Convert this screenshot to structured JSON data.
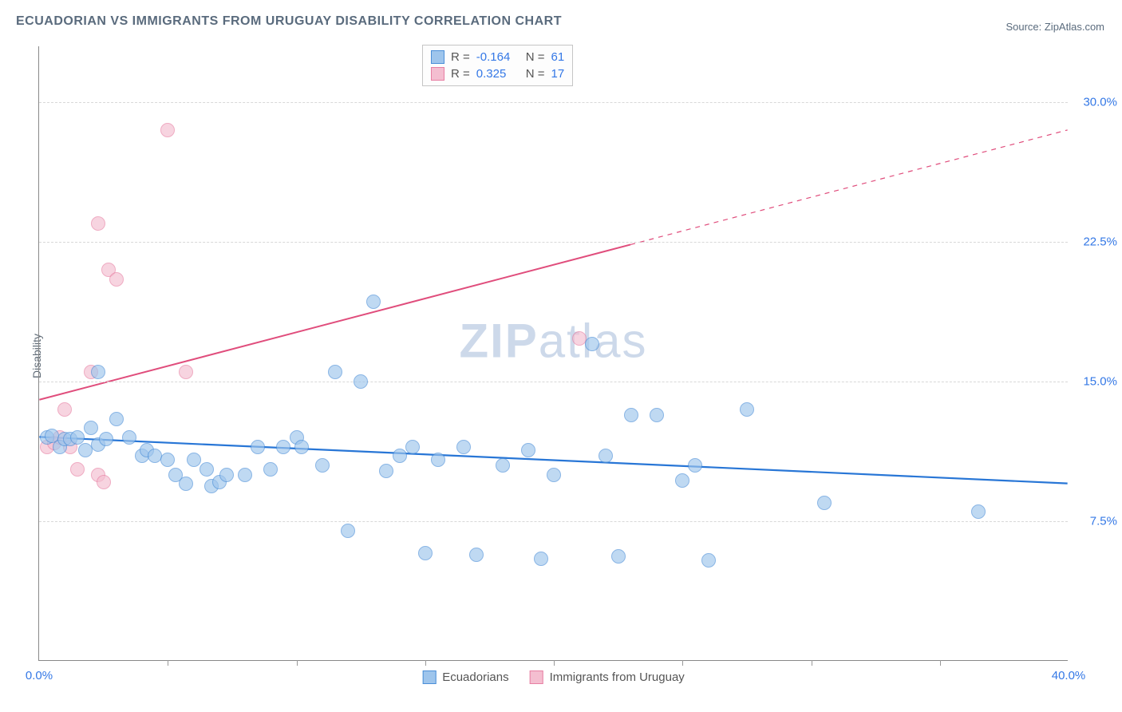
{
  "title": "ECUADORIAN VS IMMIGRANTS FROM URUGUAY DISABILITY CORRELATION CHART",
  "source": "Source: ZipAtlas.com",
  "yaxis_label": "Disability",
  "watermark": {
    "bold": "ZIP",
    "rest": "atlas"
  },
  "chart": {
    "type": "scatter",
    "xlim": [
      0,
      40
    ],
    "ylim": [
      0,
      33
    ],
    "x_ticks": [
      0,
      40
    ],
    "x_minor": [
      5,
      10,
      15,
      20,
      25,
      30,
      35
    ],
    "y_ticks": [
      7.5,
      15.0,
      22.5,
      30.0
    ],
    "x_format_pct": true,
    "y_format_pct": true,
    "grid_color": "#d8d8d8",
    "background_color": "#ffffff"
  },
  "series": {
    "ecuadorians": {
      "label": "Ecuadorians",
      "R": "-0.164",
      "N": "61",
      "fill": "#9ec5ec",
      "stroke": "#4b8fd8",
      "opacity": 0.65,
      "dot_r": 9,
      "trend": {
        "x1": 0,
        "y1": 12.0,
        "x2": 40,
        "y2": 9.5,
        "color": "#2876d6",
        "width": 2.2,
        "dash_from_x": 40
      },
      "points": [
        [
          0.3,
          12.0
        ],
        [
          0.5,
          12.1
        ],
        [
          0.8,
          11.5
        ],
        [
          1.0,
          11.9
        ],
        [
          1.2,
          11.9
        ],
        [
          1.5,
          12.0
        ],
        [
          1.8,
          11.3
        ],
        [
          2.0,
          12.5
        ],
        [
          2.3,
          11.6
        ],
        [
          2.3,
          15.5
        ],
        [
          2.6,
          11.9
        ],
        [
          3.0,
          13.0
        ],
        [
          3.5,
          12.0
        ],
        [
          4.0,
          11.0
        ],
        [
          4.2,
          11.3
        ],
        [
          4.5,
          11.0
        ],
        [
          5.0,
          10.8
        ],
        [
          5.3,
          10.0
        ],
        [
          5.7,
          9.5
        ],
        [
          6.0,
          10.8
        ],
        [
          6.5,
          10.3
        ],
        [
          6.7,
          9.4
        ],
        [
          7.0,
          9.6
        ],
        [
          7.3,
          10.0
        ],
        [
          8.0,
          10.0
        ],
        [
          8.5,
          11.5
        ],
        [
          9.0,
          10.3
        ],
        [
          9.5,
          11.5
        ],
        [
          10.0,
          12.0
        ],
        [
          10.2,
          11.5
        ],
        [
          11.0,
          10.5
        ],
        [
          11.5,
          15.5
        ],
        [
          12.0,
          7.0
        ],
        [
          12.5,
          15.0
        ],
        [
          13.0,
          19.3
        ],
        [
          13.5,
          10.2
        ],
        [
          14.0,
          11.0
        ],
        [
          14.5,
          11.5
        ],
        [
          15.0,
          5.8
        ],
        [
          15.5,
          10.8
        ],
        [
          16.5,
          11.5
        ],
        [
          17.0,
          5.7
        ],
        [
          18.0,
          10.5
        ],
        [
          19.0,
          11.3
        ],
        [
          19.5,
          5.5
        ],
        [
          20.0,
          10.0
        ],
        [
          21.5,
          17.0
        ],
        [
          22.0,
          11.0
        ],
        [
          22.5,
          5.6
        ],
        [
          23.0,
          13.2
        ],
        [
          24.0,
          13.2
        ],
        [
          25.0,
          9.7
        ],
        [
          25.5,
          10.5
        ],
        [
          26.0,
          5.4
        ],
        [
          27.5,
          13.5
        ],
        [
          30.5,
          8.5
        ],
        [
          36.5,
          8.0
        ]
      ]
    },
    "uruguay": {
      "label": "Immigrants from Uruguay",
      "R": "0.325",
      "N": "17",
      "fill": "#f4bed0",
      "stroke": "#e77fa3",
      "opacity": 0.65,
      "dot_r": 9,
      "trend": {
        "x1": 0,
        "y1": 14.0,
        "x2": 40,
        "y2": 28.5,
        "color": "#e04d7c",
        "width": 2,
        "dash_from_x": 23
      },
      "points": [
        [
          0.3,
          11.5
        ],
        [
          0.6,
          11.7
        ],
        [
          0.8,
          12.0
        ],
        [
          1.0,
          13.5
        ],
        [
          1.2,
          11.5
        ],
        [
          1.5,
          10.3
        ],
        [
          2.0,
          15.5
        ],
        [
          2.3,
          10.0
        ],
        [
          2.3,
          23.5
        ],
        [
          2.5,
          9.6
        ],
        [
          2.7,
          21.0
        ],
        [
          3.0,
          20.5
        ],
        [
          5.0,
          28.5
        ],
        [
          5.7,
          15.5
        ],
        [
          21.0,
          17.3
        ]
      ]
    }
  },
  "legend_box": {
    "rows": [
      {
        "swatch_fill": "#9ec5ec",
        "swatch_stroke": "#4b8fd8",
        "r_label": "R =",
        "r_val": "-0.164",
        "n_label": "N =",
        "n_val": "61"
      },
      {
        "swatch_fill": "#f4bed0",
        "swatch_stroke": "#e77fa3",
        "r_label": "R =",
        "r_val": "0.325",
        "n_label": "N =",
        "n_val": "17"
      }
    ]
  },
  "bottom_legend": [
    {
      "fill": "#9ec5ec",
      "stroke": "#4b8fd8",
      "label": "Ecuadorians"
    },
    {
      "fill": "#f4bed0",
      "stroke": "#e77fa3",
      "label": "Immigrants from Uruguay"
    }
  ]
}
